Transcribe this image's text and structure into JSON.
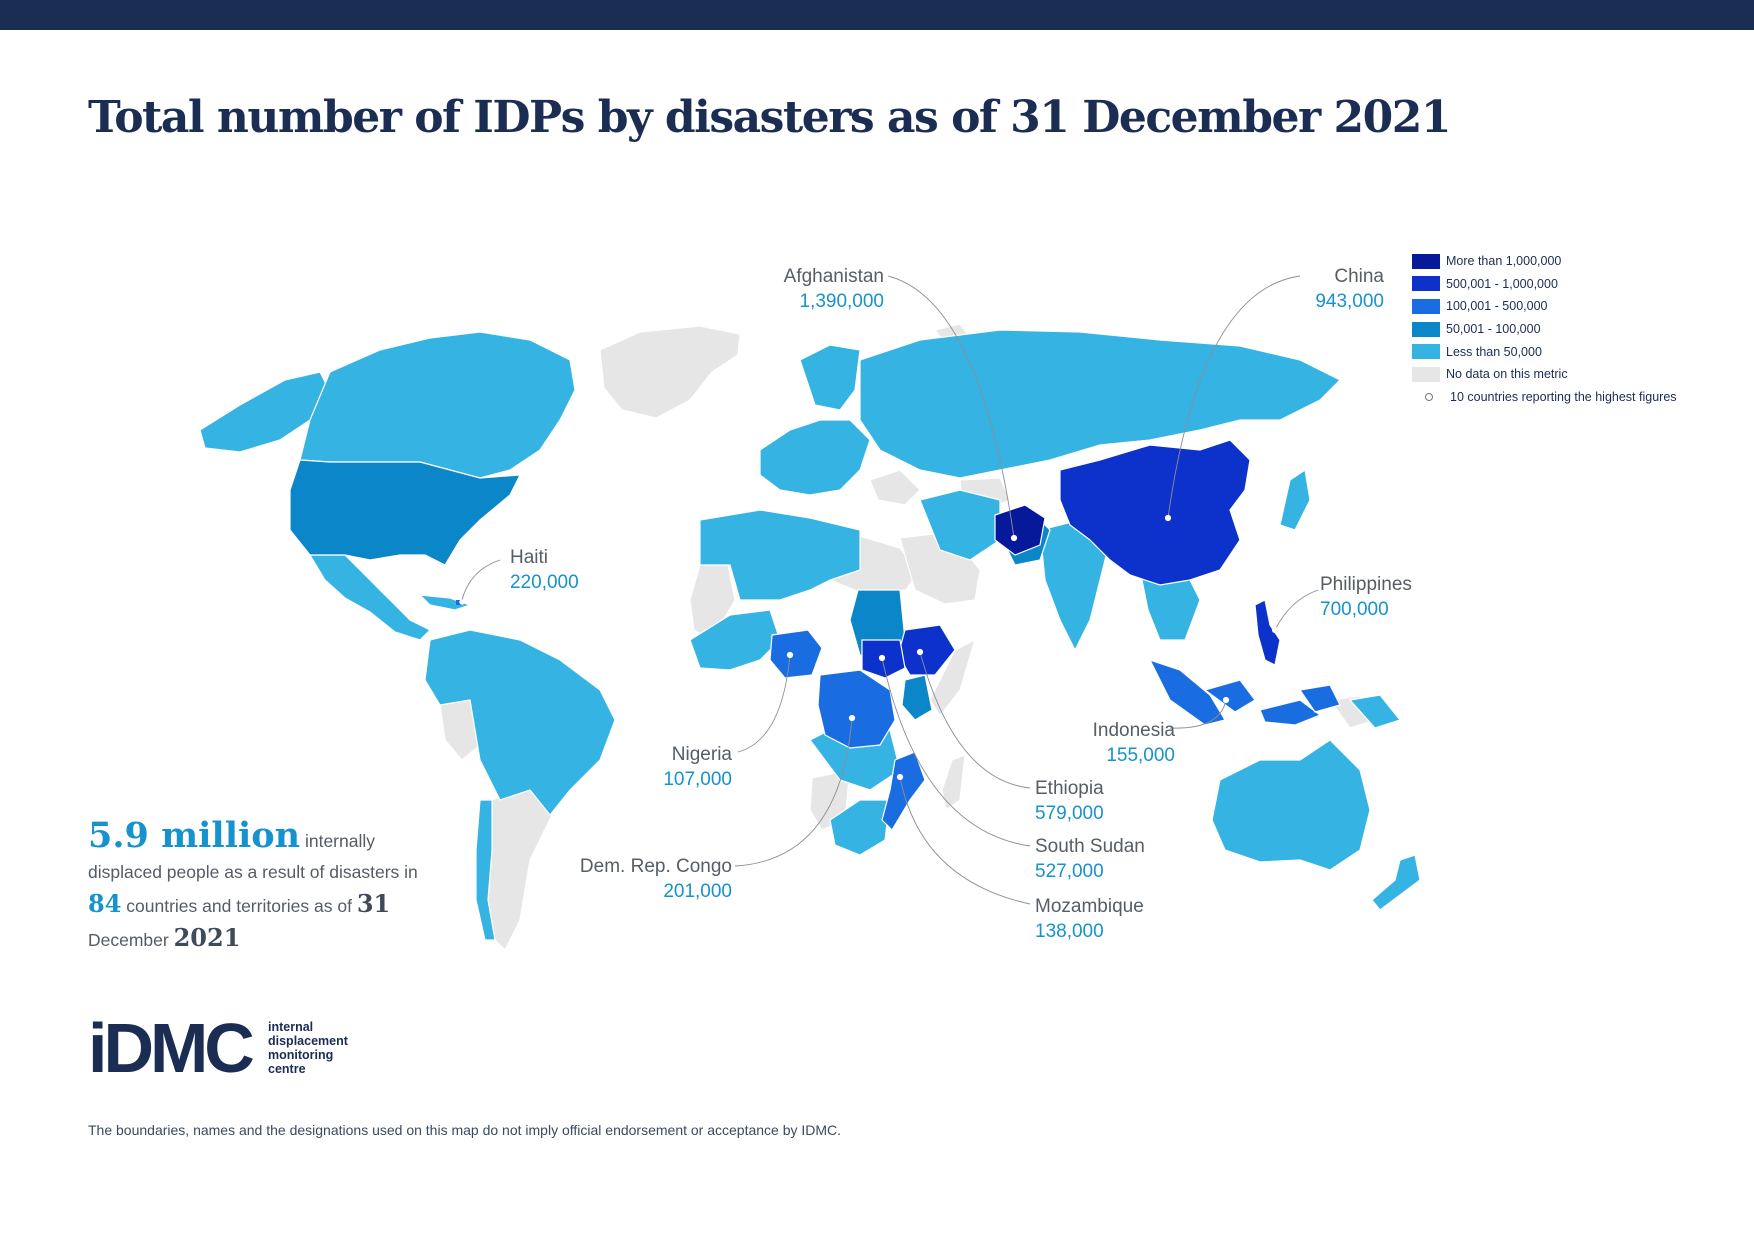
{
  "title": "Total number of IDPs by disasters as of 31 December 2021",
  "colors": {
    "more_than_1m": "#06199b",
    "500k_1m": "#0d32cc",
    "100k_500k": "#1a6de0",
    "50k_100k": "#0b86c8",
    "less_than_50k": "#35b3e2",
    "no_data": "#e6e6e6",
    "value_text": "#1693cc",
    "navy": "#1b2d53"
  },
  "legend": [
    {
      "label": "More than 1,000,000",
      "color": "#06199b"
    },
    {
      "label": "500,001 - 1,000,000",
      "color": "#0d32cc"
    },
    {
      "label": "100,001 - 500,000",
      "color": "#1a6de0"
    },
    {
      "label": "50,001 - 100,000",
      "color": "#0b86c8"
    },
    {
      "label": "Less than 50,000",
      "color": "#35b3e2"
    },
    {
      "label": "No data on this metric",
      "color": "#e6e6e6"
    }
  ],
  "legend_dot_label": "10 countries reporting the highest figures",
  "callouts": {
    "afghanistan": {
      "name": "Afghanistan",
      "value": "1,390,000"
    },
    "china": {
      "name": "China",
      "value": "943,000"
    },
    "haiti": {
      "name": "Haiti",
      "value": "220,000"
    },
    "philippines": {
      "name": "Philippines",
      "value": "700,000"
    },
    "indonesia": {
      "name": "Indonesia",
      "value": "155,000"
    },
    "nigeria": {
      "name": "Nigeria",
      "value": "107,000"
    },
    "ethiopia": {
      "name": "Ethiopia",
      "value": "579,000"
    },
    "south_sudan": {
      "name": "South Sudan",
      "value": "527,000"
    },
    "drc": {
      "name": "Dem. Rep. Congo",
      "value": "201,000"
    },
    "mozambique": {
      "name": "Mozambique",
      "value": "138,000"
    }
  },
  "summary": {
    "big_number": "5.9 million",
    "part1": "internally displaced people as a result of disasters in",
    "countries": "84",
    "part2": "countries and territories as of",
    "day": "31",
    "month": "December",
    "year": "2021"
  },
  "logo": {
    "mark": "iDMC",
    "line1": "internal",
    "line2": "displacement",
    "line3": "monitoring",
    "line4": "centre"
  },
  "disclaimer": "The boundaries, names and the designations used on this map do not imply official endorsement or acceptance by IDMC."
}
